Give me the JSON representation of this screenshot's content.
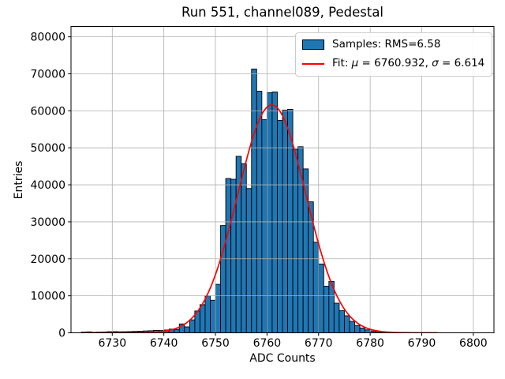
{
  "chart_data": {
    "type": "bar",
    "title": "Run 551, channel089, Pedestal",
    "xlabel": "ADC Counts",
    "ylabel": "Entries",
    "xlim": [
      6722,
      6804
    ],
    "ylim": [
      0,
      82800
    ],
    "grid": true,
    "x_ticks": [
      6730,
      6740,
      6750,
      6760,
      6770,
      6780,
      6790,
      6800
    ],
    "x_tick_labels": [
      "6730",
      "6740",
      "6750",
      "6760",
      "6770",
      "6780",
      "6790",
      "6800"
    ],
    "y_ticks": [
      0,
      10000,
      20000,
      30000,
      40000,
      50000,
      60000,
      70000,
      80000
    ],
    "y_tick_labels": [
      "0",
      "10000",
      "20000",
      "30000",
      "40000",
      "50000",
      "60000",
      "70000",
      "80000"
    ],
    "bin_start": 6724,
    "bin_width": 1,
    "categories": [
      6724,
      6725,
      6726,
      6727,
      6728,
      6729,
      6730,
      6731,
      6732,
      6733,
      6734,
      6735,
      6736,
      6737,
      6738,
      6739,
      6740,
      6741,
      6742,
      6743,
      6744,
      6745,
      6746,
      6747,
      6748,
      6749,
      6750,
      6751,
      6752,
      6753,
      6754,
      6755,
      6756,
      6757,
      6758,
      6759,
      6760,
      6761,
      6762,
      6763,
      6764,
      6765,
      6766,
      6767,
      6768,
      6769,
      6770,
      6771,
      6772,
      6773,
      6774,
      6775,
      6776,
      6777,
      6778,
      6779,
      6780,
      6781,
      6782,
      6783
    ],
    "values": [
      200,
      260,
      150,
      190,
      230,
      300,
      330,
      280,
      300,
      340,
      390,
      430,
      500,
      560,
      650,
      620,
      760,
      1000,
      920,
      2400,
      1600,
      3500,
      5900,
      7600,
      10000,
      8800,
      13100,
      29000,
      41700,
      41500,
      47700,
      45700,
      39000,
      71300,
      65300,
      57600,
      64900,
      65100,
      57400,
      60200,
      60400,
      49600,
      50300,
      44300,
      35400,
      24500,
      18600,
      12600,
      13900,
      8000,
      6000,
      4600,
      3100,
      2000,
      1300,
      800,
      500,
      350,
      250,
      150
    ],
    "bar_color": "#1f77b4",
    "bar_edge_color": "#000000",
    "grid_color": "#b0b0b0",
    "fit": {
      "mu": 6760.932,
      "sigma": 6.614,
      "amplitude": 61600,
      "x_min": 6724.3,
      "x_max": 6793.2,
      "color": "#ff0000"
    },
    "legend_entries": [
      "Samples: RMS=6.58",
      "Fit: μ = 6760.932, σ = 6.614"
    ],
    "legend": {
      "samples_label": "Samples: RMS=6.58",
      "fit_prefix": "Fit: ",
      "fit_mu_symbol": "μ",
      "fit_mu_value": " = 6760.932, ",
      "fit_sigma_symbol": "σ",
      "fit_sigma_value": " = 6.614"
    },
    "stats": {
      "rms": 6.58,
      "fit_mu": 6760.932,
      "fit_sigma": 6.614
    }
  }
}
